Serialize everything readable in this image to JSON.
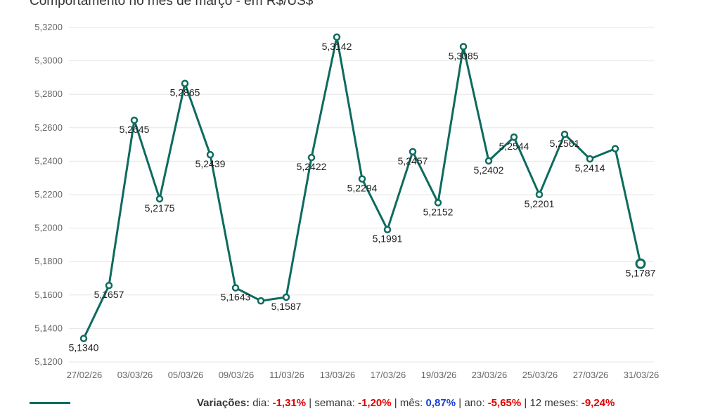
{
  "title": "Comportamento no mês de março - em R$/US$",
  "colors": {
    "line": "#0d6b5e",
    "grid": "#e6e6e6",
    "negative": "#e00000",
    "positive": "#1a3fd6"
  },
  "chart_data": {
    "type": "line",
    "title": "Comportamento no mês de março - em R$/US$",
    "ylim": [
      5.12,
      5.32
    ],
    "yticks": [
      "5,1200",
      "5,1400",
      "5,1600",
      "5,1800",
      "5,2000",
      "5,2200",
      "5,2400",
      "5,2600",
      "5,2800",
      "5,3000",
      "5,3200"
    ],
    "xtick_labels": [
      "27/02/26",
      "03/03/26",
      "05/03/26",
      "09/03/26",
      "11/03/26",
      "13/03/26",
      "17/03/26",
      "19/03/26",
      "23/03/26",
      "25/03/26",
      "27/03/26",
      "31/03/26"
    ],
    "grid": true,
    "series": [
      {
        "values": [
          5.134,
          5.1657,
          5.2645,
          5.2175,
          5.2865,
          5.2439,
          5.1643,
          5.1565,
          5.1587,
          5.2422,
          5.3142,
          5.2294,
          5.1991,
          5.2457,
          5.2152,
          5.3085,
          5.2402,
          5.2544,
          5.2201,
          5.2561,
          5.2414,
          5.2475,
          5.1787
        ],
        "labels": [
          "5,1340",
          "5,1657",
          "5,2645",
          "5,2175",
          "5,2865",
          "5,2439",
          "5,1643",
          "",
          "5,1587",
          "5,2422",
          "5,3142",
          "5,2294",
          "5,1991",
          "5,2457",
          "5,2152",
          "5,3085",
          "5,2402",
          "5,2544",
          "5,2201",
          "5,2561",
          "5,2414",
          "",
          "5,1787"
        ]
      }
    ]
  },
  "footer": {
    "label": "Variações:",
    "items": [
      {
        "name": "dia:",
        "value": "-1,31%",
        "sign": "negative"
      },
      {
        "name": "semana:",
        "value": "-1,20%",
        "sign": "negative"
      },
      {
        "name": "mês:",
        "value": "0,87%",
        "sign": "positive"
      },
      {
        "name": "ano:",
        "value": "-5,65%",
        "sign": "negative"
      },
      {
        "name": "12 meses:",
        "value": "-9,24%",
        "sign": "negative"
      }
    ]
  }
}
